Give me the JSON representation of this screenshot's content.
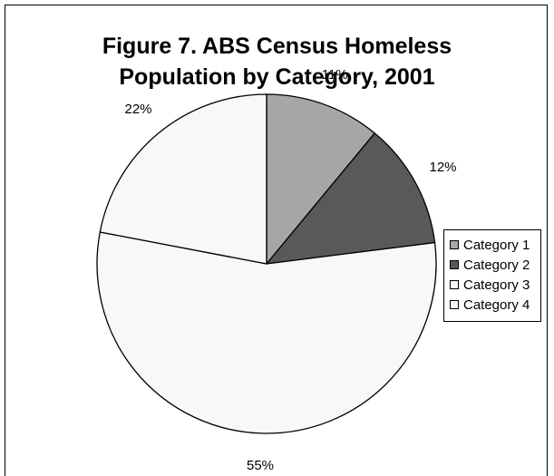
{
  "chart_data": {
    "type": "pie",
    "title_lines": [
      "Figure 7. ABS Census Homeless",
      "Population by Category, 2001"
    ],
    "slices": [
      {
        "name": "Category 1",
        "value": 11,
        "label": "11%",
        "color": "#a6a6a6"
      },
      {
        "name": "Category 2",
        "value": 12,
        "label": "12%",
        "color": "#595959"
      },
      {
        "name": "Category 3",
        "value": 55,
        "label": "55%",
        "color": "#f8f8f8"
      },
      {
        "name": "Category 4",
        "value": 22,
        "label": "22%",
        "color": "#f8f8f8"
      }
    ],
    "start_angle_deg": 0,
    "direction": "clockwise",
    "legend_position": "right",
    "legend": [
      {
        "label": "Category 1",
        "color": "#a6a6a6"
      },
      {
        "label": "Category 2",
        "color": "#595959"
      },
      {
        "label": "Category 3",
        "color": "#f8f8f8"
      },
      {
        "label": "Category 4",
        "color": "#f8f8f8"
      }
    ]
  }
}
